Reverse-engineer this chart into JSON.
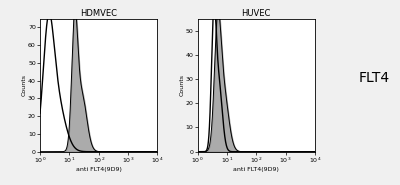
{
  "title_left": "HDMVEC",
  "title_right": "HUVEC",
  "label_right": "FLT4",
  "xlabel": "anti FLT4(9D9)",
  "ylabel": "Counts",
  "bg_color": "#f0f0f0",
  "plot_bg": "#ffffff",
  "ylim_left": [
    0,
    75
  ],
  "ylim_right": [
    0,
    55
  ],
  "yticks_left": [
    0,
    10,
    20,
    30,
    40,
    50,
    60,
    70
  ],
  "yticks_right": [
    0,
    10,
    20,
    30,
    40,
    50
  ],
  "fill_color": "#888888",
  "fill_alpha": 0.7,
  "line_color": "#000000",
  "hdmvec_iso_centers": [
    0.28,
    0.55
  ],
  "hdmvec_iso_sigmas": [
    0.18,
    0.28
  ],
  "hdmvec_iso_peaks": [
    58,
    30
  ],
  "hdmvec_samp_centers": [
    1.18,
    1.42
  ],
  "hdmvec_samp_sigmas": [
    0.1,
    0.17
  ],
  "hdmvec_samp_peaks": [
    68,
    32
  ],
  "huvec_iso_centers": [
    0.55,
    0.72
  ],
  "huvec_iso_sigmas": [
    0.08,
    0.12
  ],
  "huvec_iso_peaks": [
    50,
    28
  ],
  "huvec_samp_centers": [
    0.68,
    0.88
  ],
  "huvec_samp_sigmas": [
    0.11,
    0.17
  ],
  "huvec_samp_peaks": [
    45,
    25
  ],
  "title_fontsize": 6,
  "tick_fontsize": 4.5,
  "xlabel_fontsize": 4.5,
  "ylabel_fontsize": 4.5,
  "flt4_fontsize": 10
}
